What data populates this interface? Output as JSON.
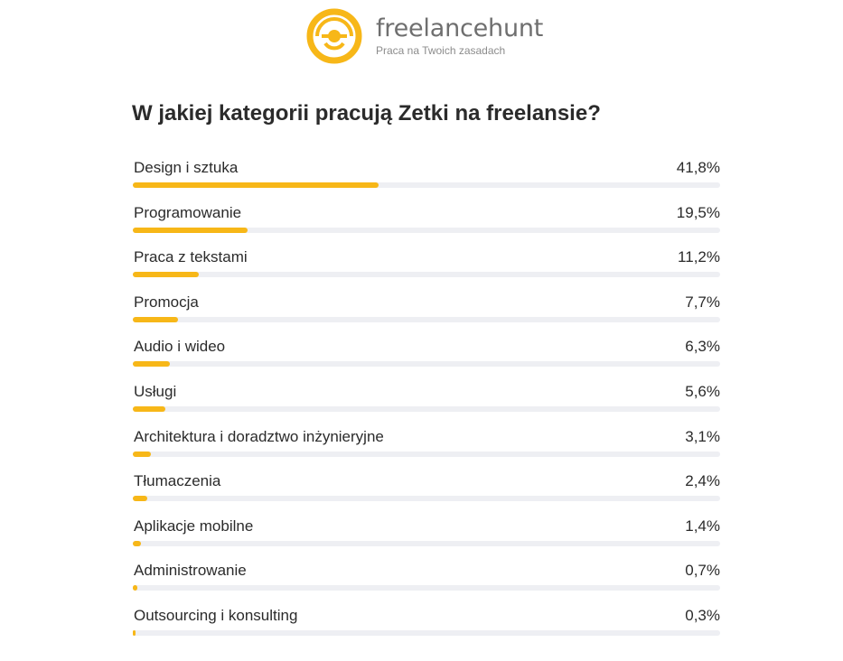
{
  "brand": {
    "name": "freelancehunt",
    "tagline": "Praca na Twoich zasadach",
    "accent_color": "#f7b718"
  },
  "chart_data": {
    "type": "bar",
    "orientation": "horizontal",
    "title": "W jakiej kategorii pracują Zetki na freelansie?",
    "unit": "%",
    "xlim": [
      0,
      100
    ],
    "categories": [
      "Design i sztuka",
      "Programowanie",
      "Praca z tekstami",
      "Promocja",
      "Audio i wideo",
      "Usługi",
      "Architektura i doradztwo inżynieryjne",
      "Tłumaczenia",
      "Aplikacje mobilne",
      "Administrowanie",
      "Outsourcing i konsulting"
    ],
    "values": [
      41.8,
      19.5,
      11.2,
      7.7,
      6.3,
      5.6,
      3.1,
      2.4,
      1.4,
      0.7,
      0.3
    ],
    "value_labels": [
      "41,8%",
      "19,5%",
      "11,2%",
      "7,7%",
      "6,3%",
      "5,6%",
      "3,1%",
      "2,4%",
      "1,4%",
      "0,7%",
      "0,3%"
    ],
    "bar_color": "#f7b718",
    "track_color": "#eeeff3",
    "grid": false,
    "legend": "none"
  }
}
